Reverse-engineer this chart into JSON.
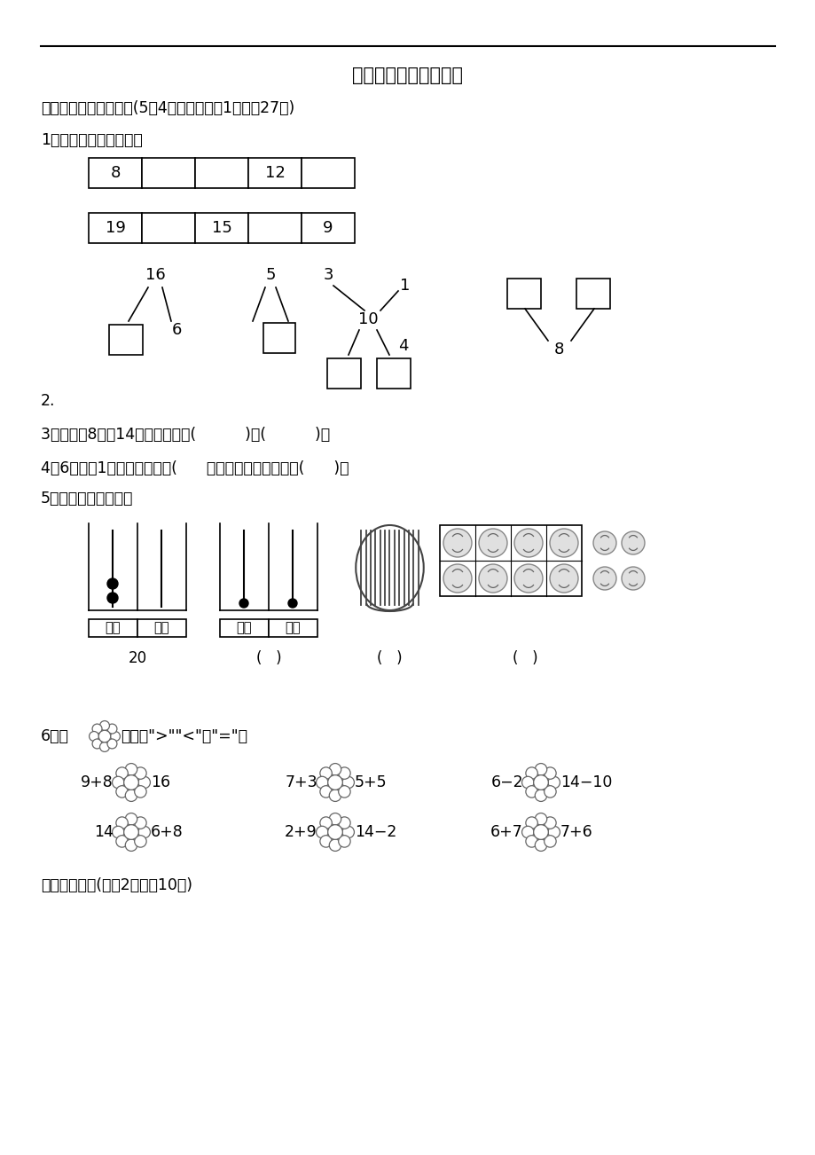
{
  "title": "上海市名校期末测试卷",
  "section1": "一、填一填，画一画。(5题4分，其余每空1分，共27分)",
  "q1_label": "1．按数的顺序填一填。",
  "table1_values": [
    "8",
    "",
    "",
    "12",
    ""
  ],
  "table2_values": [
    "19",
    "",
    "15",
    "",
    "9"
  ],
  "q2_label": "2.",
  "q3": "3．写出比8大比14小的两个数：(          )，(          )。",
  "q4": "4．6个一和1个十组成的数是(      ），它后面的一个数是(      )。",
  "q5_label": "5．画一画，写一写。",
  "q6_prefix": "6．在",
  "q6_suffix": "里填上\">\"\"<\"或\"=\"。",
  "section3": "三、我会选。(每题2分，共10分)",
  "bg_color": "#ffffff"
}
